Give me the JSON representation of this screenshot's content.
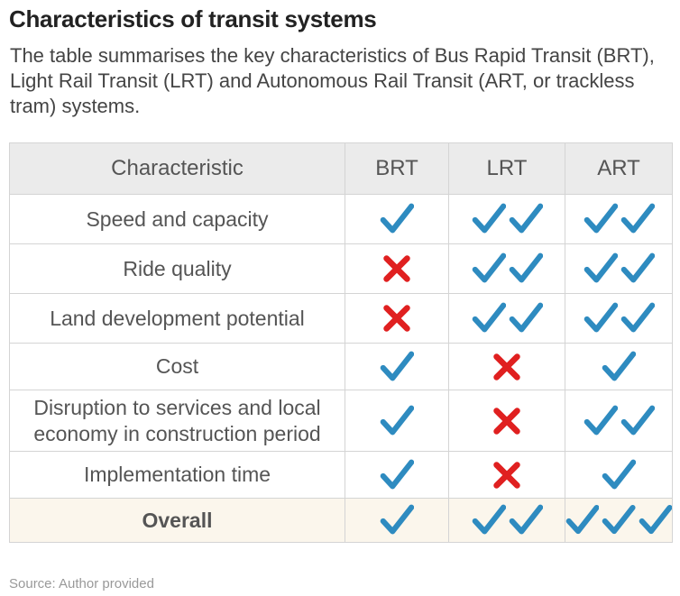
{
  "title": "Characteristics of transit systems",
  "subtitle": "The table summarises the key characteristics of Bus Rapid Transit (BRT), Light Rail Transit (LRT) and Autonomous Rail Transit (ART, or trackless tram) systems.",
  "table": {
    "headers": [
      "Characteristic",
      "BRT",
      "LRT",
      "ART"
    ],
    "rows": [
      {
        "characteristic": "Speed and capacity",
        "BRT": 1,
        "LRT": 2,
        "ART": 2
      },
      {
        "characteristic": "Ride quality",
        "BRT": 0,
        "LRT": 2,
        "ART": 2
      },
      {
        "characteristic": "Land development potential",
        "BRT": 0,
        "LRT": 2,
        "ART": 2
      },
      {
        "characteristic": "Cost",
        "BRT": 1,
        "LRT": 0,
        "ART": 1
      },
      {
        "characteristic": "Disruption to services and local economy in construction period",
        "BRT": 1,
        "LRT": 0,
        "ART": 2
      },
      {
        "characteristic": "Implementation time",
        "BRT": 1,
        "LRT": 0,
        "ART": 1
      }
    ],
    "overall": {
      "characteristic": "Overall",
      "BRT": 1,
      "LRT": 2,
      "ART": 3
    }
  },
  "icons": {
    "positive": "check-icon",
    "negative": "cross-icon"
  },
  "colors": {
    "check": "#2e8bc0",
    "cross": "#e02020",
    "header_bg": "#ebebeb",
    "overall_bg": "#fbf6ec"
  },
  "source": "Source: Author provided"
}
